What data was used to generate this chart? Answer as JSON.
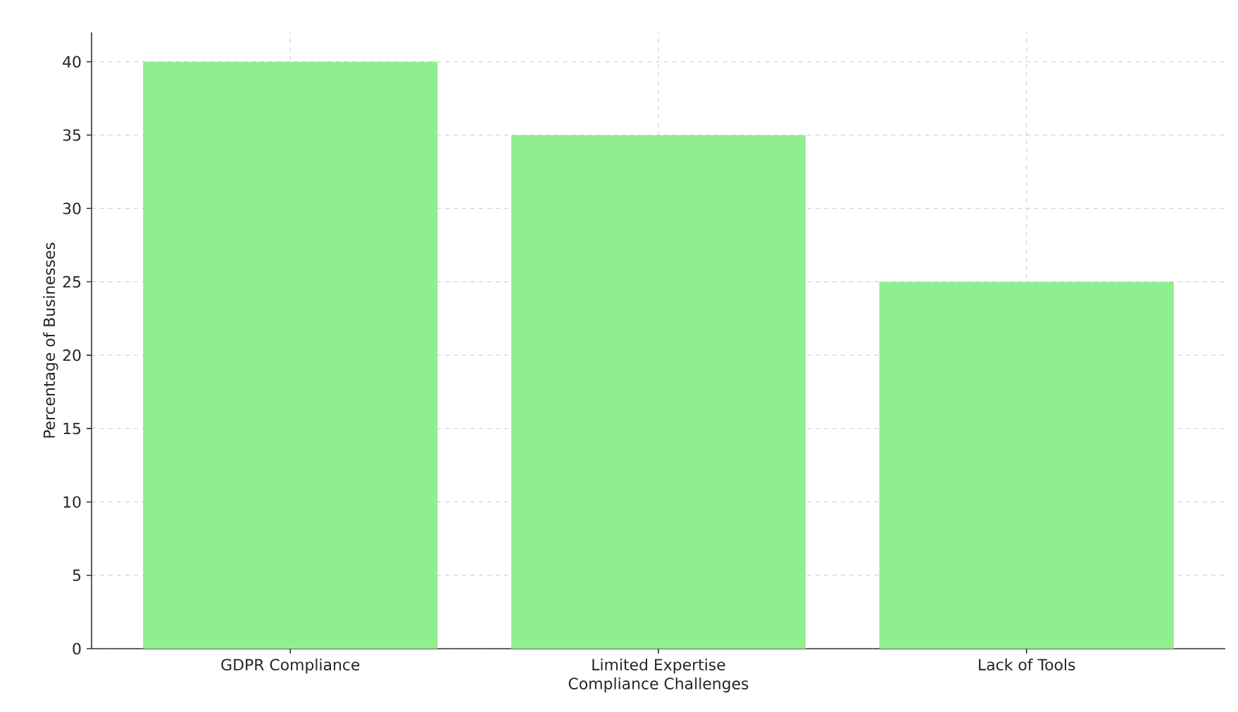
{
  "chart_data": {
    "type": "bar",
    "xlabel": "Compliance Challenges",
    "ylabel": "Percentage of Businesses",
    "categories": [
      "GDPR Compliance",
      "Limited Expertise",
      "Lack of Tools"
    ],
    "values": [
      40,
      35,
      25
    ],
    "color": "#90ee90",
    "ylim": [
      0,
      42
    ],
    "yticks": [
      0,
      5,
      10,
      15,
      20,
      25,
      30,
      35,
      40
    ],
    "grid": true
  }
}
